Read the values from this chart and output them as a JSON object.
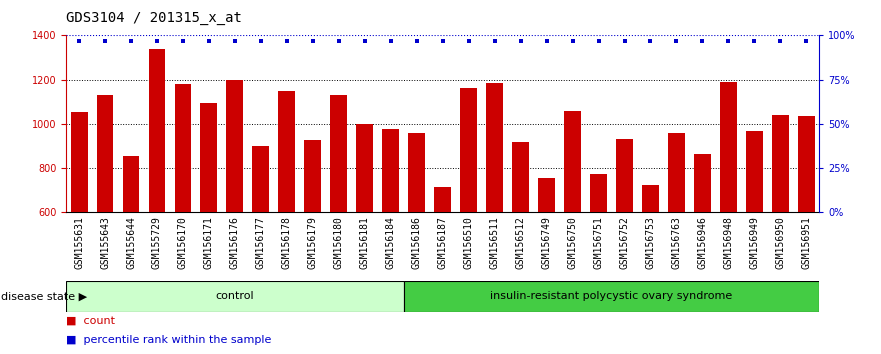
{
  "title": "GDS3104 / 201315_x_at",
  "samples": [
    "GSM155631",
    "GSM155643",
    "GSM155644",
    "GSM155729",
    "GSM156170",
    "GSM156171",
    "GSM156176",
    "GSM156177",
    "GSM156178",
    "GSM156179",
    "GSM156180",
    "GSM156181",
    "GSM156184",
    "GSM156186",
    "GSM156187",
    "GSM156510",
    "GSM156511",
    "GSM156512",
    "GSM156749",
    "GSM156750",
    "GSM156751",
    "GSM156752",
    "GSM156753",
    "GSM156763",
    "GSM156946",
    "GSM156948",
    "GSM156949",
    "GSM156950",
    "GSM156951"
  ],
  "values": [
    1055,
    1130,
    855,
    1340,
    1180,
    1095,
    1200,
    900,
    1150,
    925,
    1130,
    1000,
    975,
    960,
    715,
    1160,
    1185,
    920,
    755,
    1060,
    775,
    930,
    725,
    960,
    865,
    1190,
    970,
    1040,
    1035
  ],
  "percentile_ranks": [
    97,
    97,
    97,
    97,
    97,
    97,
    97,
    97,
    97,
    97,
    97,
    97,
    97,
    97,
    97,
    97,
    97,
    97,
    97,
    97,
    97,
    97,
    97,
    97,
    97,
    97,
    97,
    97,
    97
  ],
  "bar_color": "#cc0000",
  "percentile_color": "#0000cc",
  "ymin": 600,
  "ymax": 1400,
  "yticks": [
    600,
    800,
    1000,
    1200,
    1400
  ],
  "right_yticks": [
    0,
    25,
    50,
    75,
    100
  ],
  "grid_values": [
    800,
    1000,
    1200
  ],
  "control_count": 13,
  "disease_count": 16,
  "control_label": "control",
  "disease_label": "insulin-resistant polycystic ovary syndrome",
  "disease_state_label": "disease state",
  "legend_count_label": "count",
  "legend_percentile_label": "percentile rank within the sample",
  "control_color": "#ccffcc",
  "disease_color": "#44cc44",
  "bg_color": "#d8d8d8",
  "title_fontsize": 10,
  "tick_fontsize": 7,
  "label_fontsize": 8
}
